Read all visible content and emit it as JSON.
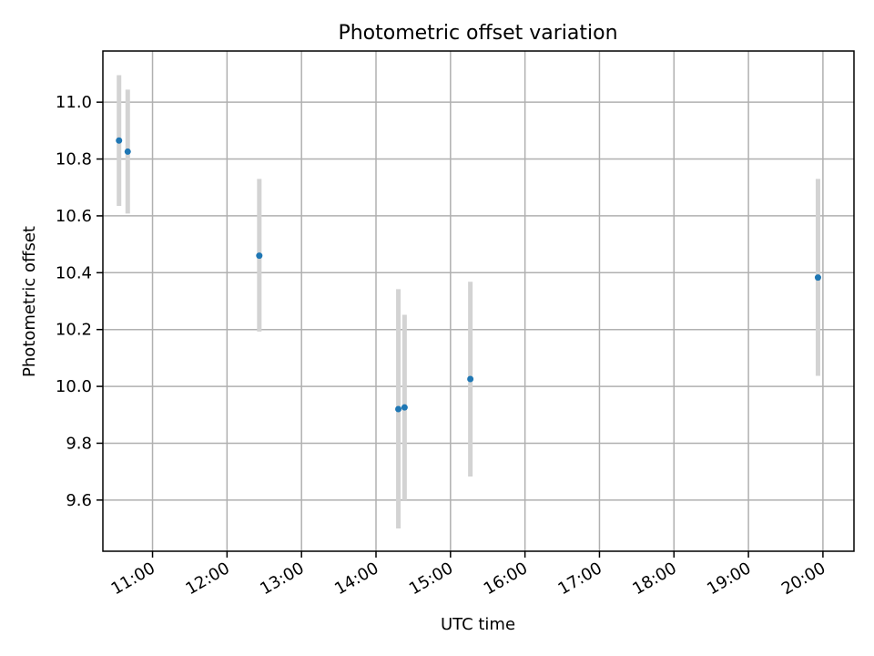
{
  "chart_data": {
    "type": "scatter",
    "title": "Photometric offset variation",
    "xlabel": "UTC time",
    "ylabel": "Photometric offset",
    "x_ticks": [
      "11:00",
      "12:00",
      "13:00",
      "14:00",
      "15:00",
      "16:00",
      "17:00",
      "18:00",
      "19:00",
      "20:00"
    ],
    "y_ticks": [
      "9.6",
      "9.8",
      "10.0",
      "10.2",
      "10.4",
      "10.6",
      "10.8",
      "11.0"
    ],
    "xlim": [
      "10:20",
      "20:25"
    ],
    "ylim": [
      9.42,
      11.18
    ],
    "grid": true,
    "colors": {
      "point": "#1f77b4",
      "errorbar": "#d3d3d3",
      "grid": "#b0b0b0"
    },
    "points": [
      {
        "time": "10:33",
        "value": 10.865,
        "low": 10.635,
        "high": 11.095
      },
      {
        "time": "10:40",
        "value": 10.826,
        "low": 10.608,
        "high": 11.044
      },
      {
        "time": "12:26",
        "value": 10.46,
        "low": 10.193,
        "high": 10.73
      },
      {
        "time": "14:18",
        "value": 9.92,
        "low": 9.5,
        "high": 10.342
      },
      {
        "time": "14:23",
        "value": 9.926,
        "low": 9.6,
        "high": 10.252
      },
      {
        "time": "15:16",
        "value": 10.026,
        "low": 9.683,
        "high": 10.368
      },
      {
        "time": "19:56",
        "value": 10.383,
        "low": 10.037,
        "high": 10.73
      }
    ]
  }
}
